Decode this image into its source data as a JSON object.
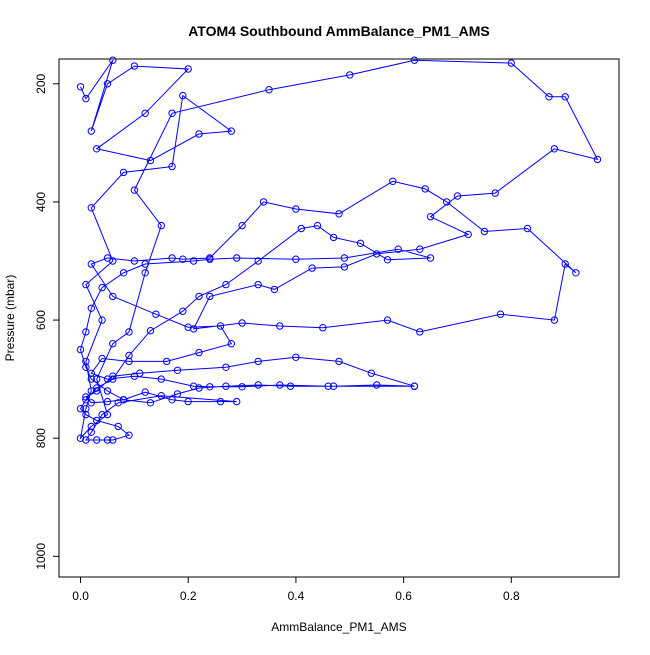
{
  "chart_data": {
    "type": "line",
    "title": "ATOM4 Southbound AmmBalance_PM1_AMS",
    "xlabel": "AmmBalance_PM1_AMS",
    "ylabel": "Pressure (mbar)",
    "xlim": [
      -0.04,
      1.0
    ],
    "ylim": [
      1035,
      158
    ],
    "x_ticks": [
      "0.0",
      "0.2",
      "0.4",
      "0.6",
      "0.8"
    ],
    "x_tick_values": [
      0.0,
      0.2,
      0.4,
      0.6,
      0.8
    ],
    "y_ticks": [
      "200",
      "400",
      "600",
      "800",
      "1000"
    ],
    "y_tick_values": [
      200,
      400,
      600,
      800,
      1000
    ],
    "grid": false,
    "marker": "open-circle",
    "color": "#0000ff",
    "series": [
      {
        "values": [
          [
            0.0,
            205
          ],
          [
            0.01,
            225
          ],
          [
            0.06,
            160
          ],
          [
            0.02,
            280
          ],
          [
            0.05,
            200
          ],
          [
            0.1,
            170
          ],
          [
            0.2,
            175
          ],
          [
            0.12,
            250
          ],
          [
            0.03,
            310
          ],
          [
            0.13,
            330
          ],
          [
            0.22,
            285
          ],
          [
            0.28,
            280
          ],
          [
            0.19,
            220
          ],
          [
            0.17,
            340
          ],
          [
            0.08,
            350
          ],
          [
            0.02,
            410
          ],
          [
            0.06,
            500
          ],
          [
            0.01,
            540
          ],
          [
            0.04,
            600
          ],
          [
            0.01,
            670
          ],
          [
            0.02,
            720
          ],
          [
            0.01,
            750
          ],
          [
            0.0,
            800
          ],
          [
            0.02,
            780
          ],
          [
            0.05,
            760
          ],
          [
            0.03,
            700
          ],
          [
            0.06,
            640
          ],
          [
            0.09,
            620
          ],
          [
            0.12,
            520
          ],
          [
            0.15,
            440
          ],
          [
            0.1,
            380
          ],
          [
            0.17,
            250
          ],
          [
            0.35,
            210
          ],
          [
            0.5,
            185
          ],
          [
            0.62,
            160
          ],
          [
            0.8,
            165
          ],
          [
            0.87,
            222
          ],
          [
            0.9,
            222
          ],
          [
            0.96,
            328
          ],
          [
            0.88,
            310
          ],
          [
            0.77,
            385
          ],
          [
            0.7,
            390
          ],
          [
            0.65,
            425
          ],
          [
            0.72,
            455
          ],
          [
            0.63,
            480
          ],
          [
            0.55,
            488
          ],
          [
            0.49,
            510
          ],
          [
            0.43,
            512
          ],
          [
            0.36,
            548
          ],
          [
            0.33,
            540
          ],
          [
            0.24,
            560
          ],
          [
            0.21,
            615
          ],
          [
            0.3,
            605
          ],
          [
            0.37,
            610
          ],
          [
            0.45,
            613
          ],
          [
            0.57,
            600
          ],
          [
            0.63,
            620
          ],
          [
            0.78,
            590
          ],
          [
            0.88,
            600
          ],
          [
            0.9,
            505
          ],
          [
            0.92,
            520
          ],
          [
            0.83,
            445
          ],
          [
            0.75,
            450
          ],
          [
            0.68,
            400
          ],
          [
            0.64,
            378
          ],
          [
            0.58,
            365
          ],
          [
            0.48,
            420
          ],
          [
            0.4,
            412
          ],
          [
            0.34,
            400
          ],
          [
            0.3,
            440
          ],
          [
            0.24,
            495
          ],
          [
            0.19,
            497
          ],
          [
            0.17,
            495
          ],
          [
            0.1,
            500
          ],
          [
            0.05,
            495
          ],
          [
            0.02,
            505
          ],
          [
            0.06,
            560
          ],
          [
            0.14,
            590
          ],
          [
            0.2,
            612
          ],
          [
            0.26,
            610
          ],
          [
            0.28,
            640
          ],
          [
            0.22,
            655
          ],
          [
            0.16,
            670
          ],
          [
            0.09,
            670
          ],
          [
            0.04,
            665
          ],
          [
            0.02,
            690
          ],
          [
            0.05,
            700
          ],
          [
            0.1,
            695
          ],
          [
            0.15,
            700
          ],
          [
            0.21,
            712
          ],
          [
            0.24,
            713
          ],
          [
            0.3,
            713
          ],
          [
            0.37,
            710
          ],
          [
            0.46,
            712
          ],
          [
            0.62,
            712
          ],
          [
            0.54,
            690
          ],
          [
            0.48,
            670
          ],
          [
            0.4,
            663
          ],
          [
            0.33,
            670
          ],
          [
            0.27,
            680
          ],
          [
            0.18,
            685
          ],
          [
            0.11,
            690
          ],
          [
            0.06,
            695
          ],
          [
            0.03,
            720
          ],
          [
            0.01,
            730
          ],
          [
            0.02,
            740
          ],
          [
            0.05,
            738
          ],
          [
            0.08,
            735
          ],
          [
            0.12,
            722
          ],
          [
            0.17,
            735
          ],
          [
            0.2,
            738
          ],
          [
            0.26,
            738
          ],
          [
            0.29,
            738
          ],
          [
            0.15,
            728
          ],
          [
            0.07,
            740
          ],
          [
            0.04,
            760
          ],
          [
            0.02,
            790
          ],
          [
            0.01,
            803
          ],
          [
            0.03,
            803
          ],
          [
            0.05,
            803
          ],
          [
            0.06,
            803
          ],
          [
            0.09,
            795
          ],
          [
            0.07,
            780
          ],
          [
            0.03,
            770
          ],
          [
            0.01,
            760
          ],
          [
            0.0,
            750
          ],
          [
            0.01,
            735
          ],
          [
            0.03,
            715
          ],
          [
            0.06,
            700
          ],
          [
            0.09,
            660
          ],
          [
            0.13,
            618
          ],
          [
            0.19,
            585
          ],
          [
            0.22,
            560
          ],
          [
            0.27,
            540
          ],
          [
            0.33,
            500
          ],
          [
            0.41,
            445
          ],
          [
            0.44,
            440
          ],
          [
            0.47,
            460
          ],
          [
            0.52,
            470
          ],
          [
            0.57,
            498
          ],
          [
            0.65,
            495
          ],
          [
            0.59,
            480
          ],
          [
            0.49,
            495
          ],
          [
            0.4,
            497
          ],
          [
            0.29,
            495
          ],
          [
            0.24,
            497
          ],
          [
            0.21,
            500
          ],
          [
            0.12,
            505
          ],
          [
            0.08,
            520
          ],
          [
            0.04,
            545
          ],
          [
            0.02,
            580
          ],
          [
            0.01,
            620
          ],
          [
            0.0,
            650
          ],
          [
            0.01,
            680
          ],
          [
            0.02,
            700
          ],
          [
            0.05,
            720
          ],
          [
            0.08,
            735
          ],
          [
            0.13,
            740
          ],
          [
            0.18,
            725
          ],
          [
            0.22,
            715
          ],
          [
            0.27,
            712
          ],
          [
            0.33,
            710
          ],
          [
            0.39,
            712
          ],
          [
            0.47,
            712
          ],
          [
            0.55,
            710
          ],
          [
            0.62,
            712
          ]
        ]
      }
    ]
  }
}
